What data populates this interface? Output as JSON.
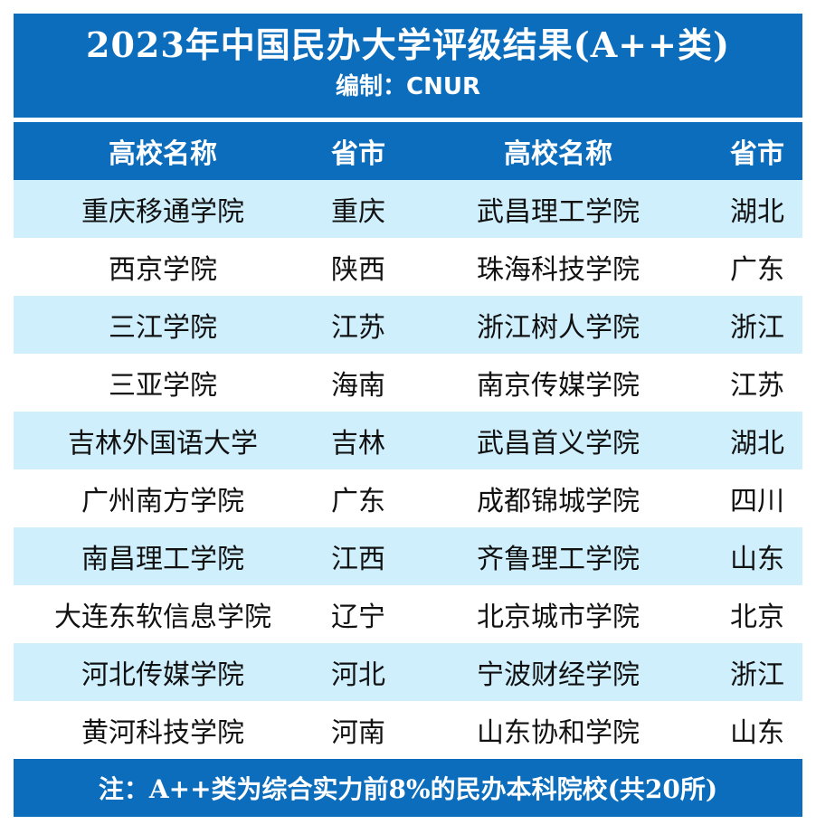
{
  "title": "2023年中国民办大学评级结果(A++类)",
  "subtitle": "编制：CNUR",
  "headers": {
    "name1": "高校名称",
    "prov1": "省市",
    "name2": "高校名称",
    "prov2": "省市"
  },
  "rows": [
    {
      "name1": "重庆移通学院",
      "prov1": "重庆",
      "name2": "武昌理工学院",
      "prov2": "湖北"
    },
    {
      "name1": "西京学院",
      "prov1": "陕西",
      "name2": "珠海科技学院",
      "prov2": "广东"
    },
    {
      "name1": "三江学院",
      "prov1": "江苏",
      "name2": "浙江树人学院",
      "prov2": "浙江"
    },
    {
      "name1": "三亚学院",
      "prov1": "海南",
      "name2": "南京传媒学院",
      "prov2": "江苏"
    },
    {
      "name1": "吉林外国语大学",
      "prov1": "吉林",
      "name2": "武昌首义学院",
      "prov2": "湖北"
    },
    {
      "name1": "广州南方学院",
      "prov1": "广东",
      "name2": "成都锦城学院",
      "prov2": "四川"
    },
    {
      "name1": "南昌理工学院",
      "prov1": "江西",
      "name2": "齐鲁理工学院",
      "prov2": "山东"
    },
    {
      "name1": "大连东软信息学院",
      "prov1": "辽宁",
      "name2": "北京城市学院",
      "prov2": "北京"
    },
    {
      "name1": "河北传媒学院",
      "prov1": "河北",
      "name2": "宁波财经学院",
      "prov2": "浙江"
    },
    {
      "name1": "黄河科技学院",
      "prov1": "河南",
      "name2": "山东协和学院",
      "prov2": "山东"
    }
  ],
  "footer": "注：A++类为综合实力前8%的民办本科院校(共20所)",
  "colors": {
    "header_bg": "#0b6dbb",
    "stripe_bg": "#cfeffd",
    "plain_bg": "#ffffff"
  }
}
